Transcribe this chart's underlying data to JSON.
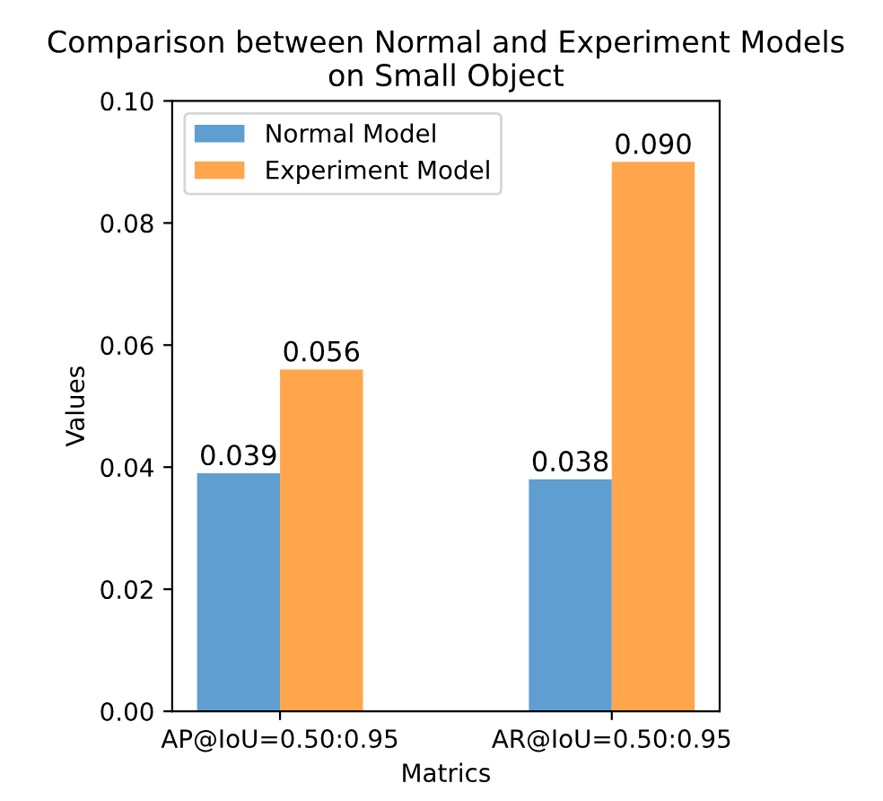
{
  "chart_data": {
    "type": "bar",
    "title": "Comparison between Normal and Experiment Models\non Small Object",
    "xlabel": "Matrics",
    "ylabel": "Values",
    "categories": [
      "AP@IoU=0.50:0.95",
      "AR@IoU=0.50:0.95"
    ],
    "series": [
      {
        "name": "Normal Model",
        "color": "#5f9ed1",
        "values": [
          0.039,
          0.038
        ]
      },
      {
        "name": "Experiment Model",
        "color": "#ffa64d",
        "values": [
          0.056,
          0.09
        ]
      }
    ],
    "ylim": [
      0,
      0.1
    ],
    "yticks": [
      {
        "value": 0,
        "label": "0.00"
      },
      {
        "value": 0.02,
        "label": "0.02"
      },
      {
        "value": 0.04,
        "label": "0.04"
      },
      {
        "value": 0.06,
        "label": "0.06"
      },
      {
        "value": 0.08,
        "label": "0.08"
      },
      {
        "value": 0.1,
        "label": "0.10"
      }
    ],
    "value_labels": [
      [
        "0.039",
        "0.038"
      ],
      [
        "0.056",
        "0.090"
      ]
    ],
    "legend": "top left",
    "grid": false
  }
}
